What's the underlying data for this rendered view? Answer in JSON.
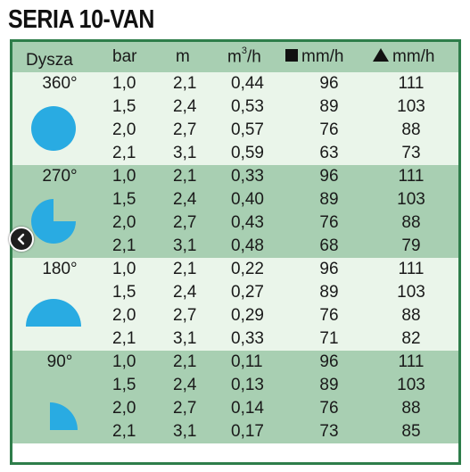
{
  "title": "SERIA 10-VAN",
  "header": {
    "dysza": "Dysza",
    "bar": "bar",
    "m": "m",
    "m3h_base": "m",
    "m3h_sup": "3",
    "m3h_unit": "/h",
    "square_mmh": "mm/h",
    "triangle_mmh": "mm/h"
  },
  "colors": {
    "border": "#2e7d4a",
    "light_band": "#eaf5ea",
    "dark_band": "#a8cfb2",
    "nozzle": "#29abe2"
  },
  "groups": [
    {
      "angle": "360°",
      "rows": [
        {
          "bar": "1,0",
          "m": "2,1",
          "m3h": "0,44",
          "square": "96",
          "triangle": "111"
        },
        {
          "bar": "1,5",
          "m": "2,4",
          "m3h": "0,53",
          "square": "89",
          "triangle": "103"
        },
        {
          "bar": "2,0",
          "m": "2,7",
          "m3h": "0,57",
          "square": "76",
          "triangle": "88"
        },
        {
          "bar": "2,1",
          "m": "3,1",
          "m3h": "0,59",
          "square": "63",
          "triangle": "73"
        }
      ]
    },
    {
      "angle": "270°",
      "rows": [
        {
          "bar": "1,0",
          "m": "2,1",
          "m3h": "0,33",
          "square": "96",
          "triangle": "111"
        },
        {
          "bar": "1,5",
          "m": "2,4",
          "m3h": "0,40",
          "square": "89",
          "triangle": "103"
        },
        {
          "bar": "2,0",
          "m": "2,7",
          "m3h": "0,43",
          "square": "76",
          "triangle": "88"
        },
        {
          "bar": "2,1",
          "m": "3,1",
          "m3h": "0,48",
          "square": "68",
          "triangle": "79"
        }
      ]
    },
    {
      "angle": "180°",
      "rows": [
        {
          "bar": "1,0",
          "m": "2,1",
          "m3h": "0,22",
          "square": "96",
          "triangle": "111"
        },
        {
          "bar": "1,5",
          "m": "2,4",
          "m3h": "0,27",
          "square": "89",
          "triangle": "103"
        },
        {
          "bar": "2,0",
          "m": "2,7",
          "m3h": "0,29",
          "square": "76",
          "triangle": "88"
        },
        {
          "bar": "2,1",
          "m": "3,1",
          "m3h": "0,33",
          "square": "71",
          "triangle": "82"
        }
      ]
    },
    {
      "angle": "90°",
      "rows": [
        {
          "bar": "1,0",
          "m": "2,1",
          "m3h": "0,11",
          "square": "96",
          "triangle": "111"
        },
        {
          "bar": "1,5",
          "m": "2,4",
          "m3h": "0,13",
          "square": "89",
          "triangle": "103"
        },
        {
          "bar": "2,0",
          "m": "2,7",
          "m3h": "0,14",
          "square": "76",
          "triangle": "88"
        },
        {
          "bar": "2,1",
          "m": "3,1",
          "m3h": "0,17",
          "square": "73",
          "triangle": "85"
        }
      ]
    }
  ],
  "icons": {
    "nav_button": "chevron-left-icon",
    "square_marker": "square-icon",
    "triangle_marker": "triangle-icon"
  }
}
